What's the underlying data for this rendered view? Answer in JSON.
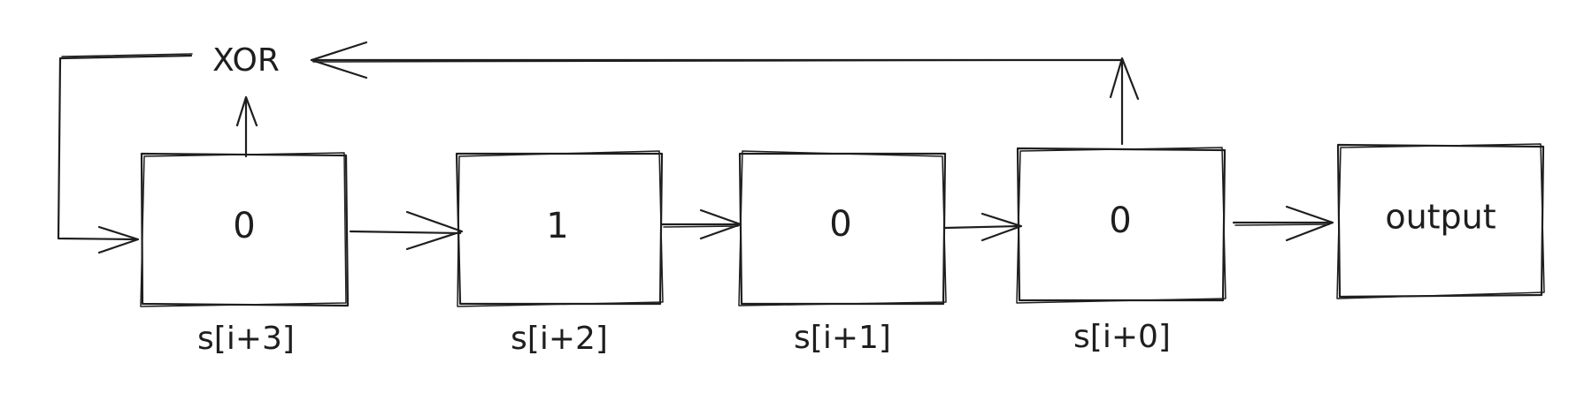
{
  "xor": {
    "label": "XOR"
  },
  "cells": [
    {
      "value": "0",
      "index_label": "s[i+3]"
    },
    {
      "value": "1",
      "index_label": "s[i+2]"
    },
    {
      "value": "0",
      "index_label": "s[i+1]"
    },
    {
      "value": "0",
      "index_label": "s[i+0]"
    }
  ],
  "output": {
    "label": "output"
  },
  "colors": {
    "stroke": "#1e1e1e",
    "background": "#ffffff"
  }
}
